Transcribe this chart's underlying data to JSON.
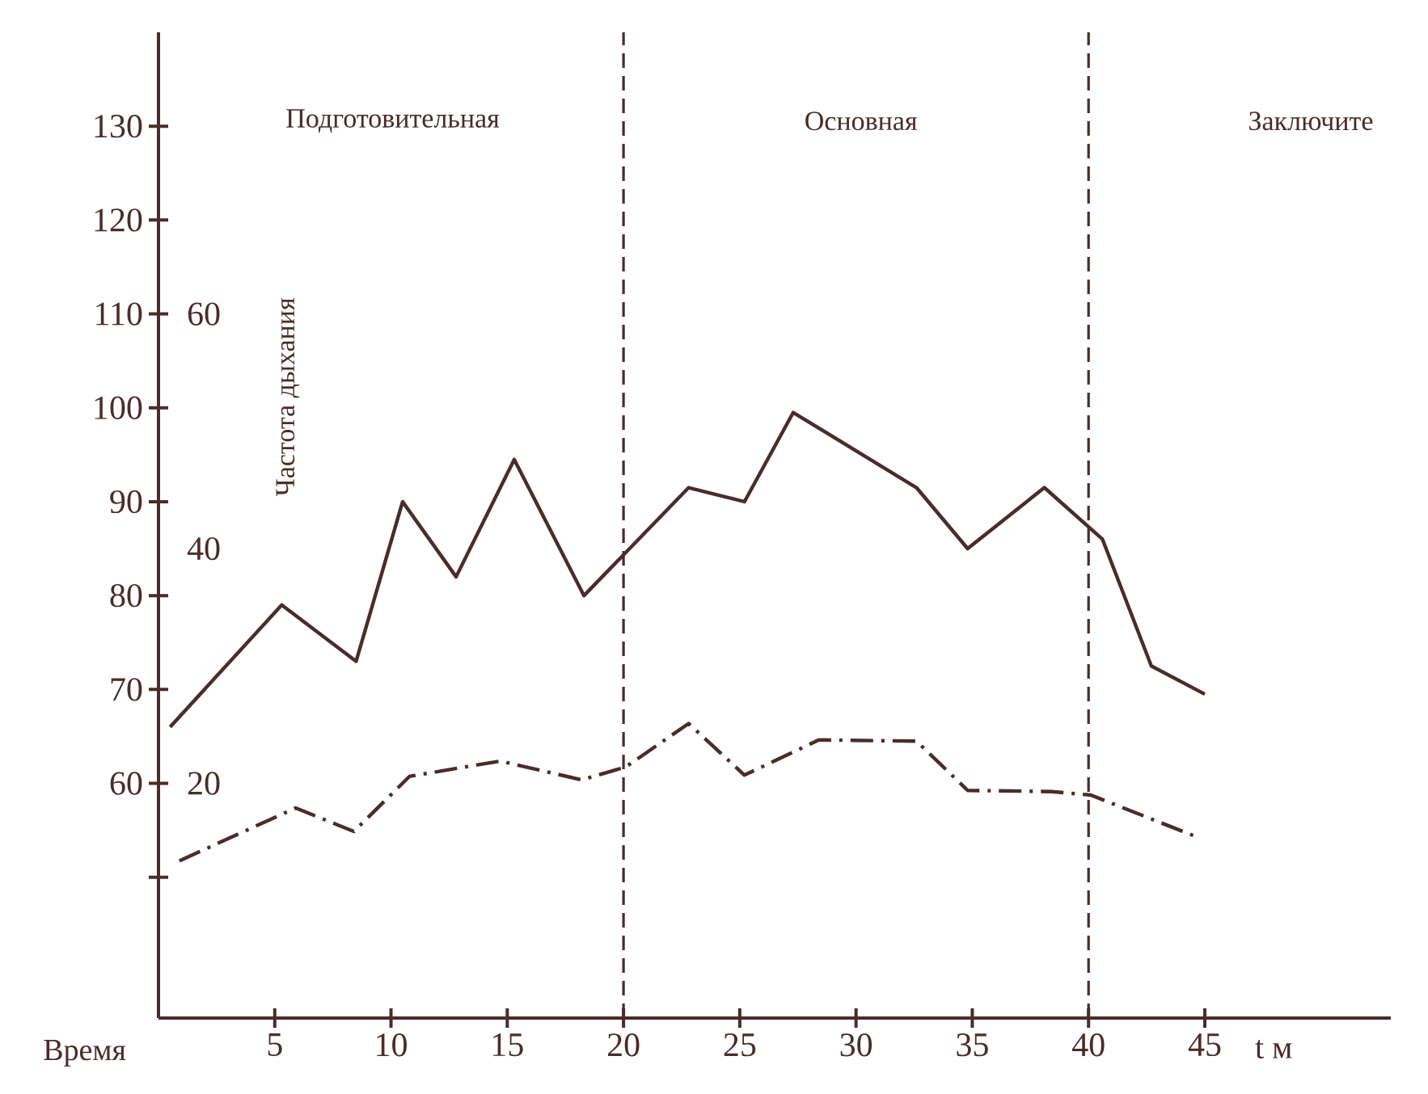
{
  "chart_data": {
    "type": "line",
    "xlabel": "Время",
    "y2label": "Частота дыхания",
    "annotations": [
      "Подготовительная",
      "Основная",
      "Заключите",
      "t м"
    ],
    "xlim": [
      0,
      53
    ],
    "xticks": [
      5,
      10,
      15,
      20,
      25,
      30,
      35,
      40,
      45
    ],
    "ylim": [
      35,
      140
    ],
    "yticks": [
      {
        "value": 50,
        "label": null
      },
      60,
      70,
      80,
      90,
      100,
      110,
      120,
      130
    ],
    "y2lim": [
      0,
      84
    ],
    "y2ticks": [
      20,
      40,
      60
    ],
    "marker": "none",
    "ref_lines": [
      {
        "axis": "x",
        "value": 20,
        "line_style": "dashed",
        "color": "#4a2c2a"
      },
      {
        "axis": "x",
        "value": 40,
        "line_style": "dashed",
        "color": "#4a2c2a"
      }
    ],
    "series": [
      {
        "color": "#4a2c2a",
        "line_style": "solid",
        "x": [
          0.5,
          5.3,
          8.5,
          10.5,
          12.8,
          15.3,
          18.3,
          22.8,
          25.2,
          27.3,
          32.6,
          34.8,
          38.1,
          40.6,
          42.7,
          45
        ],
        "values": [
          66,
          79,
          73,
          90,
          82,
          94.5,
          80,
          91.5,
          90,
          99.5,
          91.5,
          85,
          91.5,
          86,
          72.5,
          69.5
        ]
      },
      {
        "color": "#4a2c2a",
        "line_style": "dashdot",
        "axis": "y2",
        "x": [
          0.9,
          5.9,
          8.4,
          10.8,
          14.7,
          18.2,
          20.1,
          22.8,
          25.2,
          28.4,
          32.6,
          34.8,
          38.4,
          40.1,
          44.7
        ],
        "values": [
          13.4,
          17.9,
          15.9,
          20.6,
          21.9,
          20.3,
          21.4,
          25.1,
          20.7,
          23.7,
          23.6,
          19.4,
          19.3,
          19,
          15.4
        ]
      }
    ]
  }
}
